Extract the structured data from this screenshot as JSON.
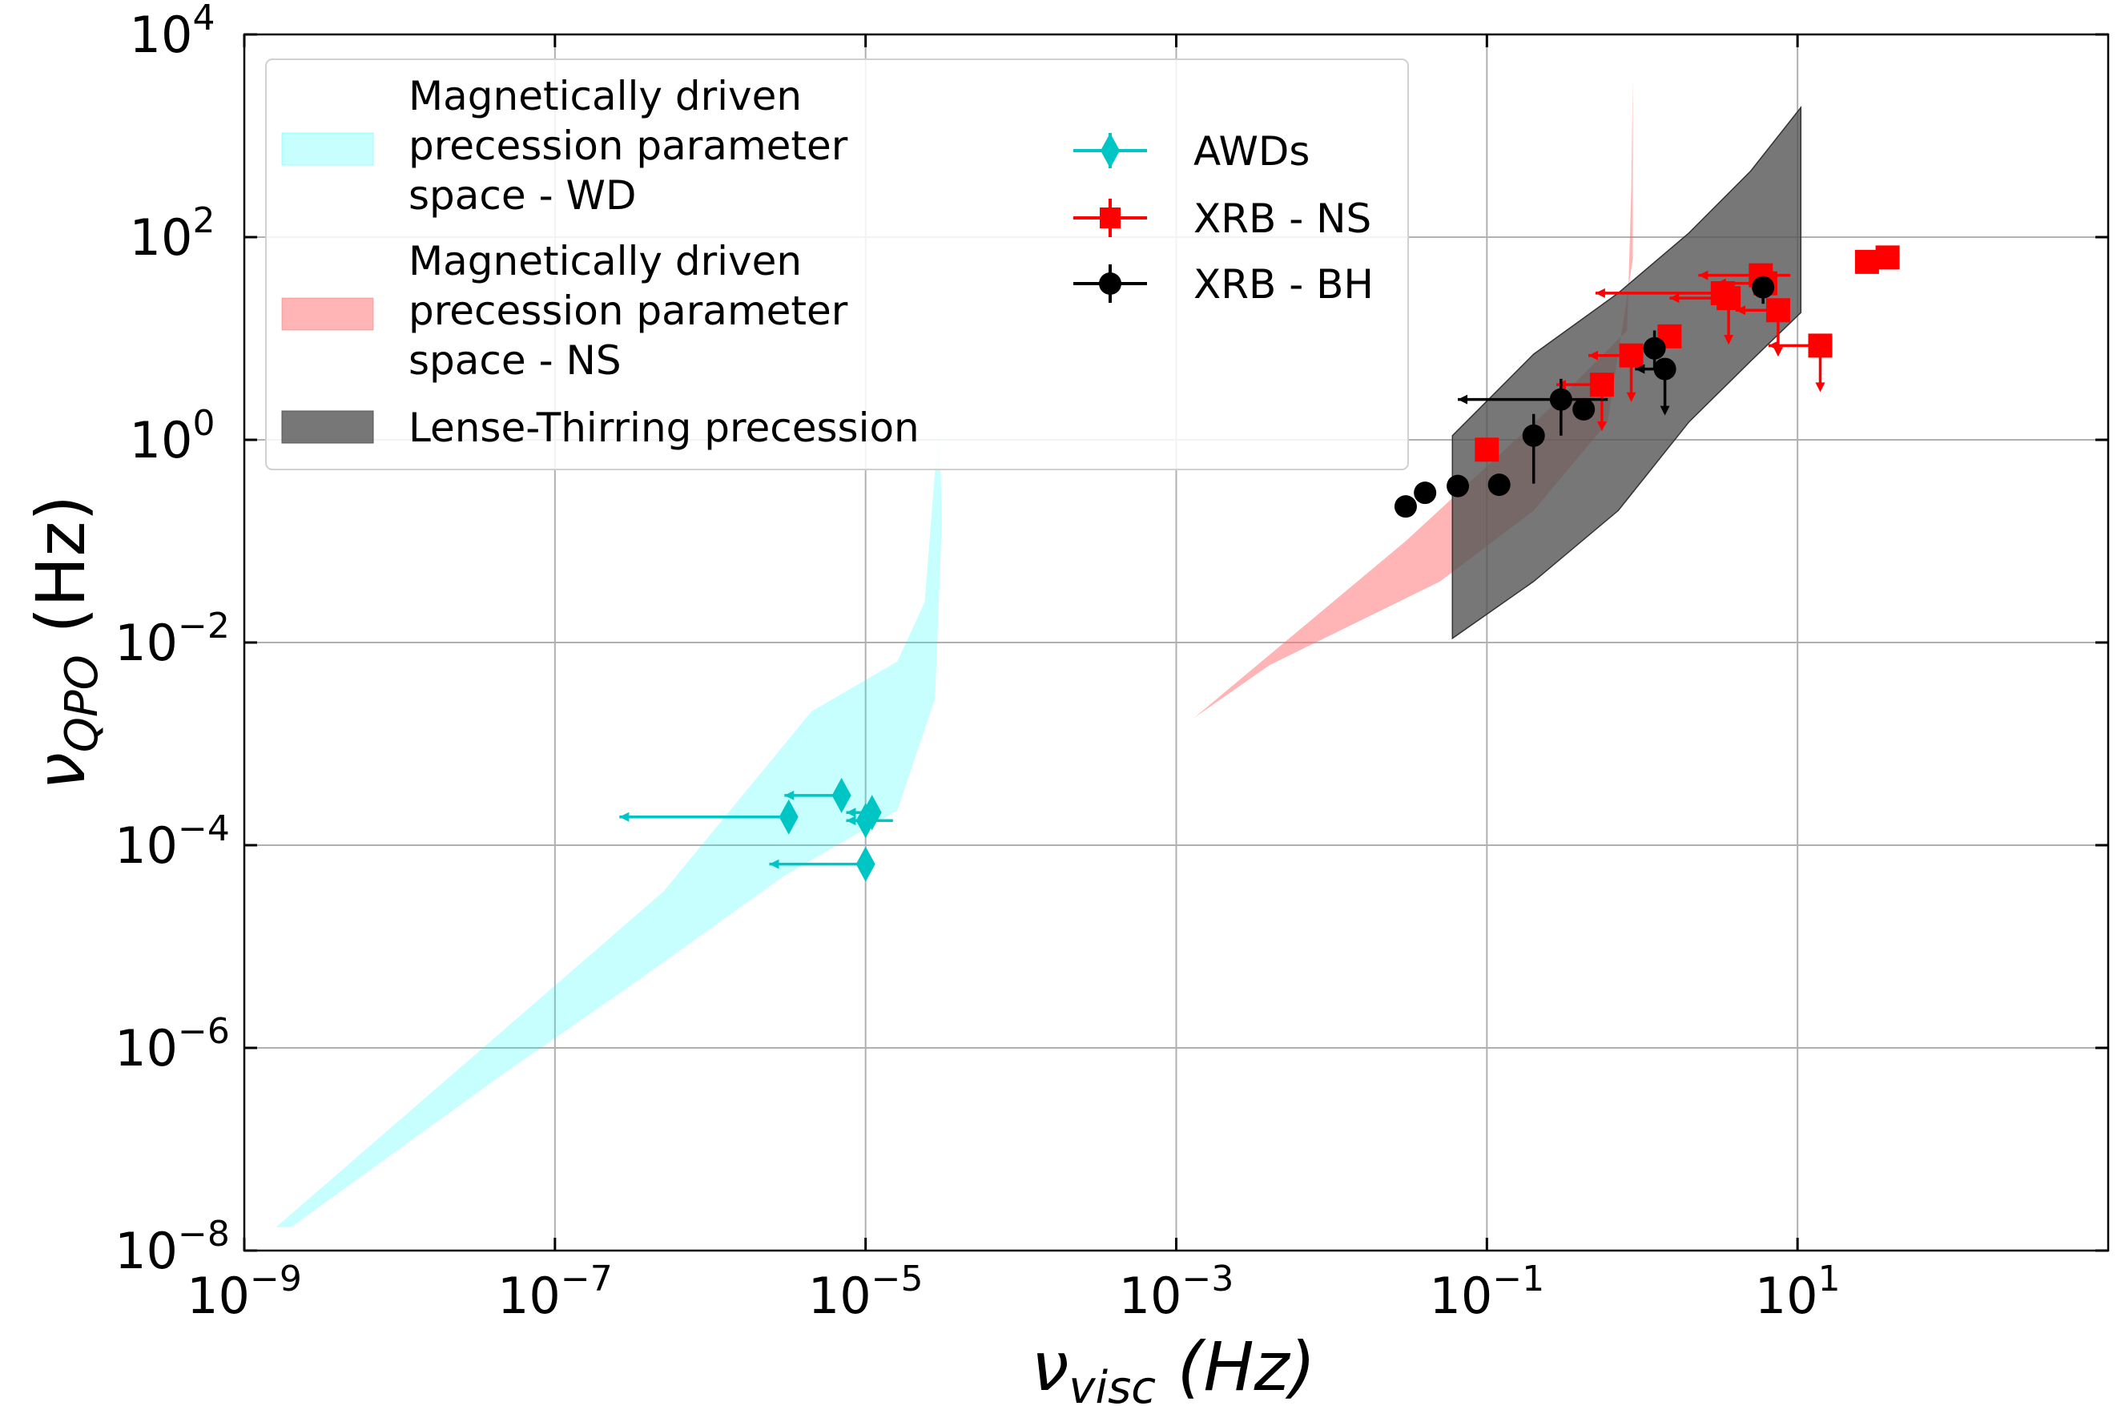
{
  "chart_data": {
    "type": "scatter",
    "xscale": "log",
    "yscale": "log",
    "xlim": [
      1e-09,
      1000.0
    ],
    "ylim": [
      1e-08,
      10000.0
    ],
    "grid": true,
    "legend_placement": "top-left",
    "x_label": {
      "main": "ν",
      "sub": "visc",
      "unit": " (Hz)"
    },
    "y_label": {
      "main": "ν",
      "sub": "QPO",
      "unit": " (Hz)"
    },
    "x_ticks": [
      {
        "value": 1e-09,
        "base": "10",
        "exp": "−9"
      },
      {
        "value": 1e-07,
        "base": "10",
        "exp": "−7"
      },
      {
        "value": 1e-05,
        "base": "10",
        "exp": "−5"
      },
      {
        "value": 0.001,
        "base": "10",
        "exp": "−3"
      },
      {
        "value": 0.1,
        "base": "10",
        "exp": "−1"
      },
      {
        "value": 10,
        "base": "10",
        "exp": "1"
      }
    ],
    "y_ticks": [
      {
        "value": 1e-08,
        "base": "10",
        "exp": "−8"
      },
      {
        "value": 1e-06,
        "base": "10",
        "exp": "−6"
      },
      {
        "value": 0.0001,
        "base": "10",
        "exp": "−4"
      },
      {
        "value": 0.01,
        "base": "10",
        "exp": "−2"
      },
      {
        "value": 1,
        "base": "10",
        "exp": "0"
      },
      {
        "value": 100,
        "base": "10",
        "exp": "2"
      },
      {
        "value": 10000,
        "base": "10",
        "exp": "4"
      }
    ],
    "colors": {
      "wd": "#00FFFF",
      "ns_band": "#FF6B6B",
      "lt_band": "#555555",
      "awd": "#00C5C5",
      "ns": "#FF0000",
      "bh": "#000000"
    },
    "bands": [
      {
        "key": "wd",
        "name_lines": [
          "Magnetically driven",
          "precession parameter",
          "space - WD"
        ],
        "fill": "#00FFFF",
        "opacity": 0.22,
        "polygon": [
          [
            1.6e-09,
            1.7e-08
          ],
          [
            5e-07,
            3.5e-05
          ],
          [
            4.5e-06,
            0.0021
          ],
          [
            1.6e-05,
            0.0065
          ],
          [
            2.4e-05,
            0.025
          ],
          [
            2.8e-05,
            0.5
          ],
          [
            3e-05,
            1.2
          ],
          [
            3.1e-05,
            0.15
          ],
          [
            2.8e-05,
            0.0028
          ],
          [
            1.6e-05,
            0.00022
          ],
          [
            3e-06,
            5e-05
          ],
          [
            3e-07,
            4e-06
          ],
          [
            5e-08,
            6e-07
          ],
          [
            2e-09,
            1.7e-08
          ]
        ]
      },
      {
        "key": "ns",
        "name_lines": [
          "Magnetically driven",
          "precession parameter",
          "space - NS"
        ],
        "fill": "#FF6B6B",
        "opacity": 0.5,
        "polygon": [
          [
            0.0013,
            0.0018
          ],
          [
            0.03,
            0.1
          ],
          [
            0.25,
            2.0
          ],
          [
            0.8,
            12
          ],
          [
            0.85,
            300
          ],
          [
            0.87,
            3500
          ],
          [
            0.87,
            60
          ],
          [
            0.6,
            1.5
          ],
          [
            0.2,
            0.2
          ],
          [
            0.05,
            0.04
          ],
          [
            0.004,
            0.006
          ]
        ]
      },
      {
        "key": "lt",
        "name_lines": [
          "Lense-Thirring precession"
        ],
        "fill": "#555555",
        "opacity": 0.8,
        "polygon": [
          [
            0.06,
            1.1
          ],
          [
            0.2,
            7
          ],
          [
            0.7,
            28
          ],
          [
            2.0,
            110
          ],
          [
            5.0,
            450
          ],
          [
            10.5,
            1900
          ],
          [
            10.5,
            18
          ],
          [
            5.0,
            6
          ],
          [
            2.0,
            1.5
          ],
          [
            0.7,
            0.2
          ],
          [
            0.2,
            0.04
          ],
          [
            0.06,
            0.011
          ]
        ]
      }
    ],
    "series": [
      {
        "name": "AWDs",
        "key": "awd",
        "marker": "diamond",
        "color": "#00C5C5",
        "points": [
          {
            "x": 3.2e-06,
            "y": 0.00019,
            "xl": 2.6e-07
          },
          {
            "x": 7e-06,
            "y": 0.00031,
            "xl": 3e-06
          },
          {
            "x": 1e-05,
            "y": 0.000175,
            "xl": 7.5e-06,
            "xh": 1.5e-05
          },
          {
            "x": 1.1e-05,
            "y": 0.00021,
            "xl": 7.5e-06
          },
          {
            "x": 1e-05,
            "y": 6.5e-05,
            "xl": 2.4e-06
          }
        ]
      },
      {
        "name": "XRB - NS",
        "key": "ns",
        "marker": "square",
        "color": "#FF0000",
        "points": [
          {
            "x": 0.1,
            "y": 0.8
          },
          {
            "x": 0.55,
            "y": 3.5,
            "xl": 0.28,
            "ul": true
          },
          {
            "x": 0.85,
            "y": 6.8,
            "xl": 0.45,
            "ul": true
          },
          {
            "x": 1.5,
            "y": 10.5
          },
          {
            "x": 3.3,
            "y": 28,
            "xl": 0.5,
            "xh": 3.5
          },
          {
            "x": 3.6,
            "y": 25,
            "xl": 1.5,
            "ul": true
          },
          {
            "x": 5.8,
            "y": 42,
            "xl": 2.3,
            "xh": 9.0
          },
          {
            "x": 6.2,
            "y": 35,
            "xl": 3.0
          },
          {
            "x": 7.5,
            "y": 19,
            "xl": 4.0,
            "ul": true
          },
          {
            "x": 14.0,
            "y": 8.5,
            "xl": 6.5,
            "ul": true
          },
          {
            "x": 28.0,
            "y": 57
          },
          {
            "x": 38.0,
            "y": 63
          }
        ]
      },
      {
        "name": "XRB - BH",
        "key": "bh",
        "marker": "circle",
        "color": "#000000",
        "points": [
          {
            "x": 0.03,
            "y": 0.22
          },
          {
            "x": 0.04,
            "y": 0.3
          },
          {
            "x": 0.065,
            "y": 0.35
          },
          {
            "x": 0.12,
            "y": 0.36
          },
          {
            "x": 0.2,
            "y": 1.1,
            "yl": 0.37,
            "yh": 1.8
          },
          {
            "x": 0.3,
            "y": 2.5,
            "xl": 0.065,
            "xh": 0.6,
            "yl": 1.1,
            "yh": 4.0
          },
          {
            "x": 0.42,
            "y": 2.0
          },
          {
            "x": 1.2,
            "y": 8.0,
            "yl": 5.0,
            "yh": 12.0
          },
          {
            "x": 1.4,
            "y": 5.0,
            "xl": 0.9,
            "ul": true
          },
          {
            "x": 6.0,
            "y": 32,
            "yl": 22
          }
        ]
      }
    ]
  }
}
